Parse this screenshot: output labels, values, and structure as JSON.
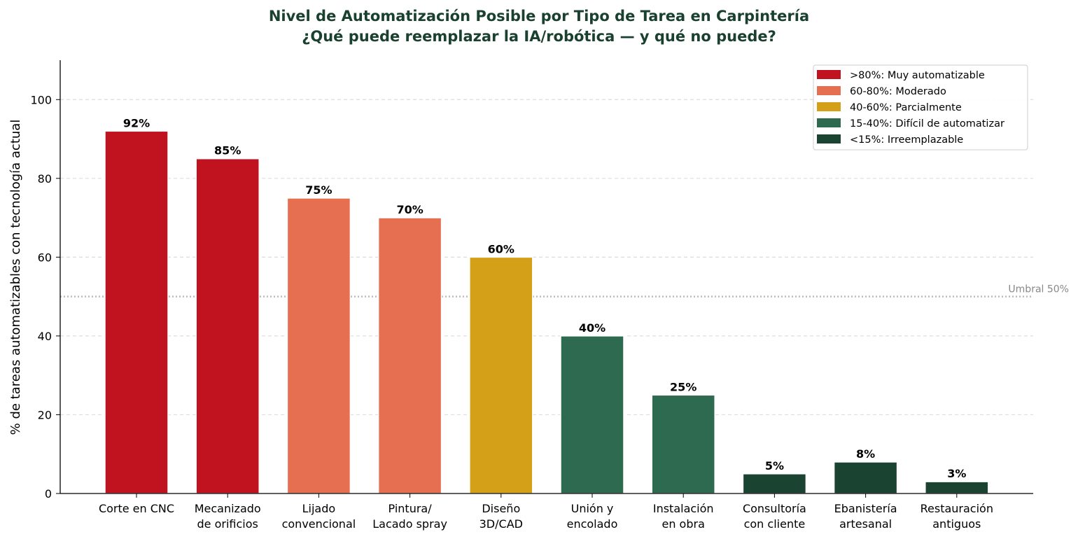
{
  "chart_data": {
    "type": "bar",
    "title_lines": [
      "Nivel de Automatización Posible por Tipo de Tarea en Carpintería",
      "¿Qué puede reemplazar la IA/robótica — y qué no puede?"
    ],
    "xlabel": "",
    "ylabel": "% de tareas automatizables con tecnología actual",
    "ylim": [
      0,
      110
    ],
    "yticks": [
      0,
      20,
      40,
      60,
      80,
      100
    ],
    "grid": "horizontal dashed",
    "legend_position": "top-right",
    "categories": [
      [
        "Corte en CNC"
      ],
      [
        "Mecanizado",
        "de orificios"
      ],
      [
        "Lijado",
        "convencional"
      ],
      [
        "Pintura/",
        "Lacado spray"
      ],
      [
        "Diseño",
        "3D/CAD"
      ],
      [
        "Unión y",
        "encolado"
      ],
      [
        "Instalación",
        "en obra"
      ],
      [
        "Consultoría",
        "con cliente"
      ],
      [
        "Ebanistería",
        "artesanal"
      ],
      [
        "Restauración",
        "antiguos"
      ]
    ],
    "values": [
      92,
      85,
      75,
      70,
      60,
      40,
      25,
      5,
      8,
      3
    ],
    "value_labels": [
      "92%",
      "85%",
      "75%",
      "70%",
      "60%",
      "40%",
      "25%",
      "5%",
      "8%",
      "3%"
    ],
    "bar_level": [
      0,
      0,
      1,
      1,
      2,
      3,
      3,
      4,
      4,
      4
    ],
    "threshold": {
      "value": 50,
      "label": "Umbral 50%",
      "color": "#bbbbbb"
    },
    "legend": [
      {
        "label": ">80%: Muy automatizable",
        "color": "#c1121f"
      },
      {
        "label": "60-80%: Moderado",
        "color": "#e76f51"
      },
      {
        "label": "40-60%: Parcialmente",
        "color": "#d4a017"
      },
      {
        "label": "15-40%: Difícil de automatizar",
        "color": "#2d6a4f"
      },
      {
        "label": "<15%: Irreemplazable",
        "color": "#1b4332"
      }
    ]
  }
}
